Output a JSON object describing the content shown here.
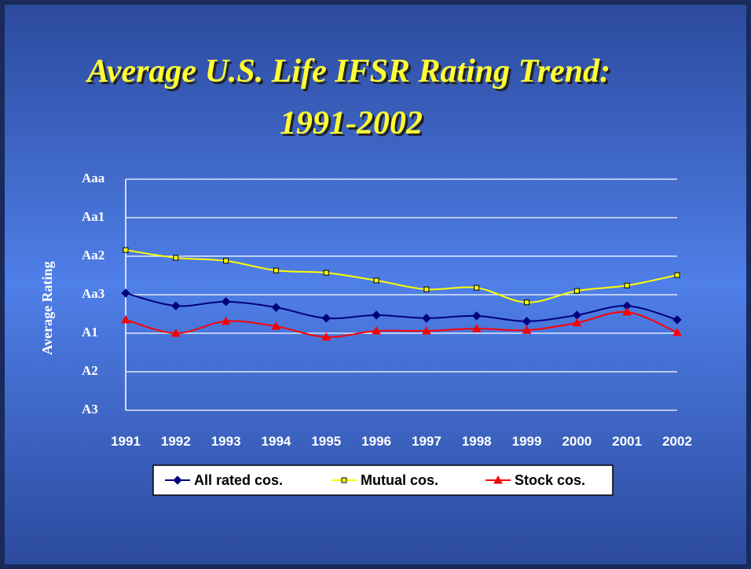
{
  "chart_data": {
    "type": "line",
    "title": "Average U.S. Life IFSR Rating Trend:",
    "subtitle": "1991-2002",
    "y_label": "Average Rating",
    "categories": [
      "1991",
      "1992",
      "1993",
      "1994",
      "1995",
      "1996",
      "1997",
      "1998",
      "1999",
      "2000",
      "2001",
      "2002"
    ],
    "series": [
      {
        "name": "All rated cos.",
        "color": "#000080",
        "marker": "diamond",
        "values": [
          3.04,
          2.71,
          2.82,
          2.67,
          2.39,
          2.47,
          2.39,
          2.45,
          2.31,
          2.47,
          2.71,
          2.35
        ]
      },
      {
        "name": "Mutual cos.",
        "color": "#ffff00",
        "marker": "square",
        "values": [
          4.16,
          3.96,
          3.88,
          3.63,
          3.57,
          3.37,
          3.14,
          3.18,
          2.8,
          3.1,
          3.24,
          3.51
        ]
      },
      {
        "name": "Stock cos.",
        "color": "#ff0000",
        "marker": "triangle",
        "values": [
          2.35,
          2.0,
          2.31,
          2.18,
          1.9,
          2.06,
          2.06,
          2.12,
          2.08,
          2.27,
          2.55,
          2.02
        ]
      }
    ],
    "ylim": [
      0,
      6
    ],
    "yticks": [
      {
        "value": 0,
        "label": "A3"
      },
      {
        "value": 1,
        "label": "A2"
      },
      {
        "value": 2,
        "label": "A1"
      },
      {
        "value": 3,
        "label": "Aa3"
      },
      {
        "value": 4,
        "label": "Aa2"
      },
      {
        "value": 5,
        "label": "Aa1"
      },
      {
        "value": 6,
        "label": "Aaa"
      }
    ],
    "grid": true,
    "legend": "bottom"
  }
}
